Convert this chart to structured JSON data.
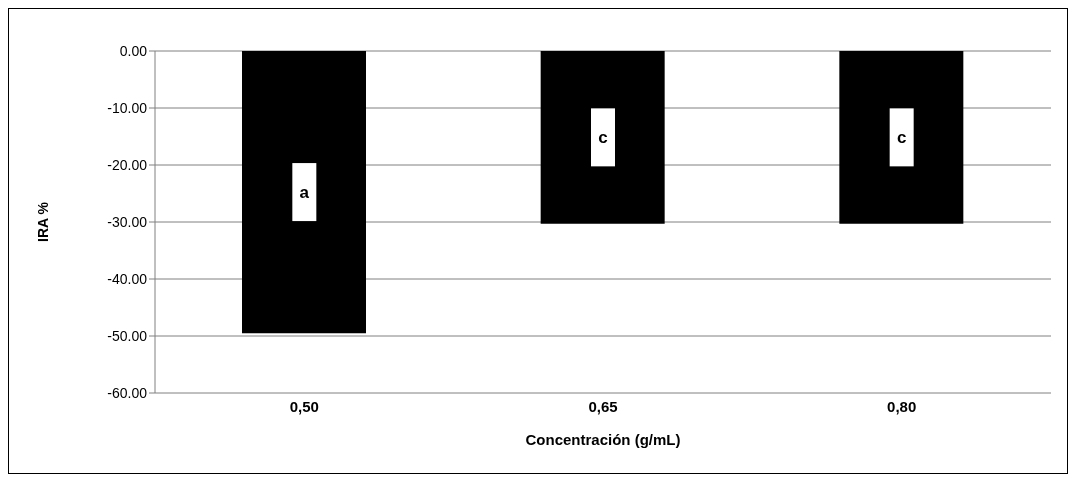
{
  "chart_data": {
    "type": "bar",
    "xlabel": "Concentración (g/mL)",
    "ylabel": "IRA %",
    "categories": [
      "0,50",
      "0,65",
      "0,80"
    ],
    "series": [
      {
        "color": "#000000",
        "values": [
          -49.5,
          -30.3,
          -30.3
        ]
      }
    ],
    "ylim": [
      -60,
      0
    ],
    "yticks": [
      {
        "value": 0,
        "label": "0.00"
      },
      {
        "value": -10,
        "label": "-10.00"
      },
      {
        "value": -20,
        "label": "-20.00"
      },
      {
        "value": -30,
        "label": "-30.00"
      },
      {
        "value": -40,
        "label": "-40.00"
      },
      {
        "value": -50,
        "label": "-50.00"
      },
      {
        "value": -60,
        "label": "-60.00"
      }
    ],
    "grid": "y",
    "legend": false,
    "annotations": [
      "a",
      "c",
      "c"
    ]
  }
}
